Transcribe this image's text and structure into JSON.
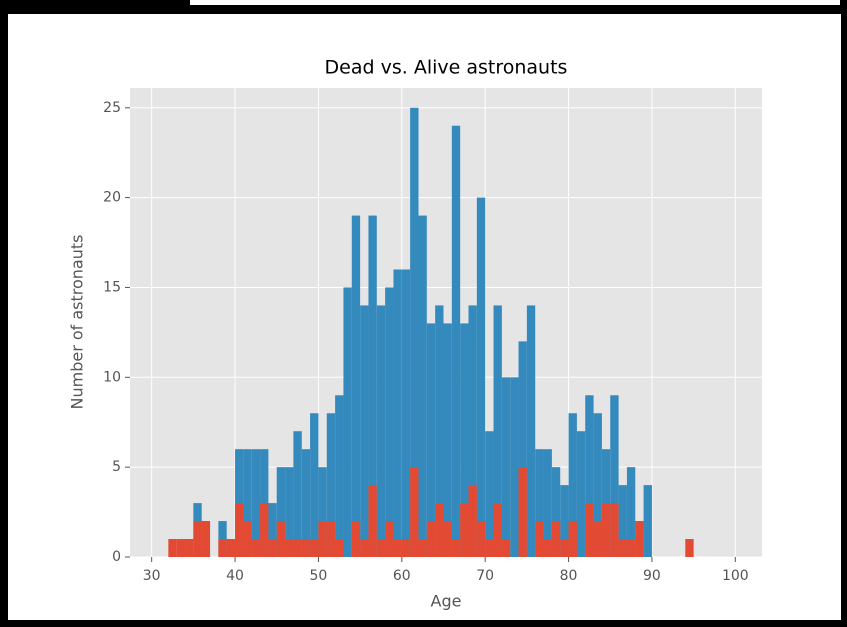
{
  "chart_data": {
    "type": "histogram",
    "title": "Dead vs. Alive astronauts",
    "x_label": "Age",
    "y_label": "Number of astronauts",
    "bins": [
      32,
      33,
      34,
      35,
      36,
      37,
      38,
      39,
      40,
      41,
      42,
      43,
      44,
      45,
      46,
      47,
      48,
      49,
      50,
      51,
      52,
      53,
      54,
      55,
      56,
      57,
      58,
      59,
      60,
      61,
      62,
      63,
      64,
      65,
      66,
      67,
      68,
      69,
      70,
      71,
      72,
      73,
      74,
      75,
      76,
      77,
      78,
      79,
      80,
      81,
      82,
      83,
      84,
      85,
      86,
      87,
      88,
      89,
      90,
      91,
      92,
      93,
      94,
      95
    ],
    "series": [
      {
        "color": "#348abd",
        "values": [
          0,
          0,
          0,
          3,
          2,
          0,
          2,
          1,
          6,
          6,
          6,
          6,
          3,
          5,
          5,
          7,
          6,
          8,
          5,
          8,
          9,
          15,
          19,
          14,
          19,
          14,
          15,
          16,
          16,
          25,
          19,
          13,
          14,
          13,
          24,
          13,
          14,
          20,
          7,
          14,
          10,
          10,
          12,
          14,
          6,
          6,
          5,
          4,
          8,
          7,
          9,
          8,
          6,
          9,
          4,
          5,
          2,
          4,
          0,
          0,
          0,
          0,
          0
        ]
      },
      {
        "color": "#e24a33",
        "values": [
          1,
          1,
          1,
          2,
          2,
          0,
          1,
          1,
          3,
          2,
          1,
          3,
          1,
          2,
          1,
          1,
          1,
          1,
          2,
          2,
          1,
          0,
          2,
          1,
          4,
          1,
          2,
          1,
          1,
          5,
          1,
          2,
          3,
          2,
          1,
          3,
          4,
          2,
          1,
          3,
          1,
          0,
          5,
          0,
          2,
          1,
          2,
          1,
          2,
          0,
          3,
          2,
          3,
          3,
          1,
          1,
          2,
          0,
          0,
          0,
          0,
          0,
          1
        ]
      }
    ],
    "xlim": [
      27.4,
      103.2
    ],
    "ylim": [
      0,
      26.1
    ],
    "xticks": [
      30,
      40,
      50,
      60,
      70,
      80,
      90,
      100
    ],
    "yticks": [
      0,
      5,
      10,
      15,
      20,
      25
    ],
    "grid": true,
    "background": "#e5e5e5"
  }
}
